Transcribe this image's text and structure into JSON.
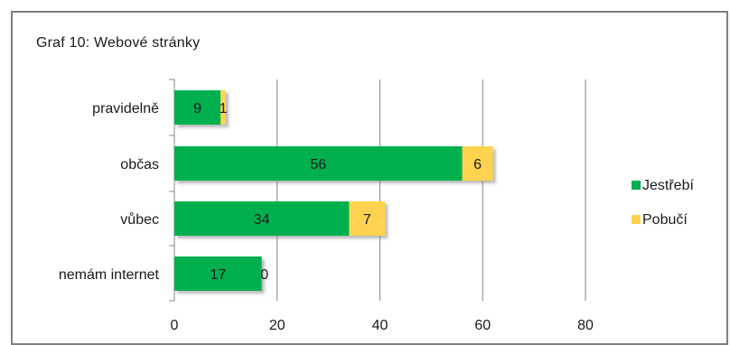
{
  "title": "Graf 10: Webové stránky",
  "colors": {
    "jestrebi": "#00b050",
    "pobuci": "#ffd34f",
    "grid": "#868686",
    "shadow": "#b5b5b5"
  },
  "chart_data": {
    "type": "bar",
    "orientation": "horizontal",
    "stacked": true,
    "title": "Graf 10: Webové stránky",
    "categories": [
      "pravidelně",
      "občas",
      "vůbec",
      "nemám internet"
    ],
    "series": [
      {
        "name": "Jestřebí",
        "values": [
          9,
          56,
          34,
          17
        ],
        "color": "#00b050"
      },
      {
        "name": "Pobučí",
        "values": [
          1,
          6,
          7,
          0
        ],
        "color": "#ffd34f"
      }
    ],
    "xlim": [
      0,
      80
    ],
    "xticks": [
      0,
      20,
      40,
      60,
      80
    ],
    "grid": "vertical",
    "legend": "right"
  }
}
